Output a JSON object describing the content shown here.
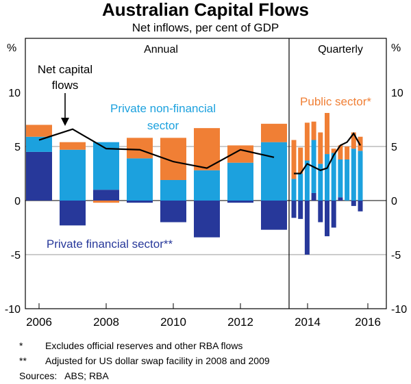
{
  "header": {
    "title": "Australian Capital Flows",
    "subtitle": "Net inflows, per cent of GDP"
  },
  "chart_data": {
    "type": "bar",
    "stacked": true,
    "title": "Australian Capital Flows",
    "subtitle": "Net inflows, per cent of GDP",
    "ylabel_left": "%",
    "ylabel_right": "%",
    "ylim": [
      -10,
      10
    ],
    "yticks": [
      10,
      5,
      0,
      -5,
      -10
    ],
    "x_tick_labels": [
      "2006",
      "2008",
      "2010",
      "2012",
      "2014",
      "2016"
    ],
    "panels": [
      {
        "name": "Annual",
        "label": "Annual"
      },
      {
        "name": "Quarterly",
        "label": "Quarterly"
      }
    ],
    "colors": {
      "public": "#f07f35",
      "private_nonfinancial": "#1ca1de",
      "private_financial": "#27389a",
      "net": "#000000"
    },
    "annual": {
      "categories": [
        "2006",
        "2007",
        "2008",
        "2009",
        "2010",
        "2011",
        "2012",
        "2013"
      ],
      "series": [
        {
          "name": "Private financial sector**",
          "key": "private_financial",
          "values": [
            4.5,
            -2.3,
            1.0,
            -0.2,
            -2.0,
            -3.4,
            -0.2,
            -2.7
          ]
        },
        {
          "name": "Private non-financial sector",
          "key": "private_nonfinancial",
          "values": [
            1.4,
            4.7,
            4.4,
            3.9,
            1.9,
            2.8,
            3.5,
            5.4
          ]
        },
        {
          "name": "Public sector*",
          "key": "public",
          "values": [
            1.1,
            0.7,
            -0.2,
            1.9,
            3.9,
            3.9,
            1.6,
            1.7
          ]
        }
      ],
      "net": [
        5.6,
        6.6,
        4.8,
        4.7,
        3.6,
        3.0,
        4.7,
        4.0
      ]
    },
    "quarterly": {
      "categories": [
        "2014Q1",
        "2014Q2",
        "2014Q3",
        "2014Q4",
        "2015Q1",
        "2015Q2",
        "2015Q3",
        "2015Q4",
        "2016Q1",
        "2016Q2",
        "2016Q3"
      ],
      "series": [
        {
          "name": "Private financial sector**",
          "key": "private_financial",
          "values": [
            -1.6,
            -1.7,
            -5.0,
            0.7,
            -2.0,
            -3.3,
            -2.5,
            0.3,
            0.0,
            -0.5,
            -1.0
          ]
        },
        {
          "name": "Private non-financial sector",
          "key": "private_nonfinancial",
          "values": [
            2.0,
            2.5,
            3.7,
            4.9,
            3.4,
            4.3,
            4.4,
            3.5,
            3.8,
            4.8,
            4.6
          ]
        },
        {
          "name": "Public sector*",
          "key": "public",
          "values": [
            3.6,
            2.4,
            3.5,
            1.7,
            2.9,
            3.8,
            0.4,
            1.3,
            1.2,
            1.5,
            1.3
          ]
        }
      ],
      "net": [
        2.5,
        2.5,
        3.4,
        3.1,
        2.8,
        3.0,
        4.2,
        5.1,
        5.4,
        6.2,
        5.1
      ]
    },
    "annotations": {
      "net_label_line1": "Net capital",
      "net_label_line2": "flows",
      "nonfin_label_line1": "Private non-financial",
      "nonfin_label_line2": "sector",
      "public_label": "Public sector*",
      "financial_label": "Private financial sector**"
    }
  },
  "footnotes": [
    {
      "mark": "*",
      "text": "Excludes official reserves and other RBA flows"
    },
    {
      "mark": "**",
      "text": "Adjusted for US dollar swap facility in 2008 and 2009"
    }
  ],
  "sources": "Sources:   ABS; RBA"
}
